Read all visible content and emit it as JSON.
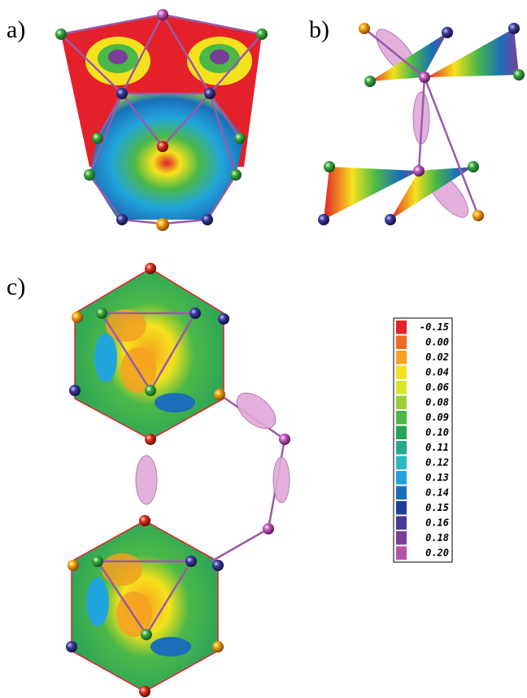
{
  "panels": [
    {
      "label": "a)"
    },
    {
      "label": "b)"
    },
    {
      "label": "c)"
    }
  ],
  "legend": {
    "entries": [
      {
        "label": "-0.15",
        "color": "#e4202a"
      },
      {
        "label": "0.00",
        "color": "#ef6a1f"
      },
      {
        "label": "0.02",
        "color": "#f7a021"
      },
      {
        "label": "0.04",
        "color": "#f5e21c"
      },
      {
        "label": "0.06",
        "color": "#d7e62a"
      },
      {
        "label": "0.08",
        "color": "#9ccd3a"
      },
      {
        "label": "0.09",
        "color": "#4bb848"
      },
      {
        "label": "0.10",
        "color": "#2aa35a"
      },
      {
        "label": "0.11",
        "color": "#27a88a"
      },
      {
        "label": "0.12",
        "color": "#2cb8c0"
      },
      {
        "label": "0.13",
        "color": "#21a4dc"
      },
      {
        "label": "0.14",
        "color": "#1a6fb8"
      },
      {
        "label": "0.15",
        "color": "#1f3f96"
      },
      {
        "label": "0.16",
        "color": "#463a96"
      },
      {
        "label": "0.18",
        "color": "#7b3e98"
      },
      {
        "label": "0.20",
        "color": "#b455a8"
      }
    ]
  }
}
